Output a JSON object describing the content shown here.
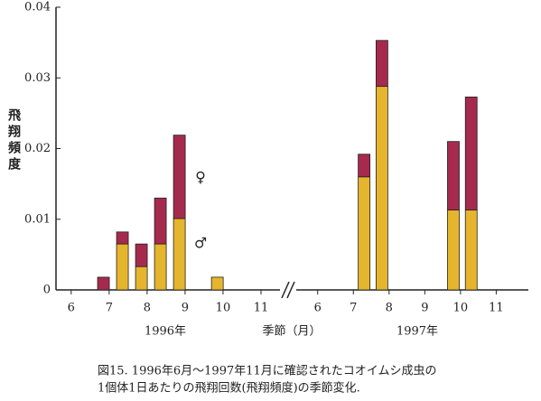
{
  "chart_data": [
    {
      "type": "bar",
      "stacked": true,
      "year": "1996年",
      "y_label": "飛翔頻度",
      "x": [
        6.85,
        7.35,
        7.85,
        8.35,
        8.85,
        9.85
      ],
      "xlim": [
        5.6,
        11.5
      ],
      "xticks": [
        6,
        7,
        8,
        9,
        10,
        11
      ],
      "ylim": [
        0,
        0.04
      ],
      "yticks": [
        0,
        0.01,
        0.02,
        0.03,
        0.04
      ],
      "series": [
        {
          "name": "♂",
          "color": "#e6b52e",
          "values": [
            0,
            0.0065,
            0.0033,
            0.0065,
            0.0101,
            0.0018
          ]
        },
        {
          "name": "♀",
          "color": "#a52a4e",
          "values": [
            0.0018,
            0.0017,
            0.0032,
            0.0065,
            0.0118,
            0
          ]
        }
      ]
    },
    {
      "type": "bar",
      "stacked": true,
      "year": "1997年",
      "x_label": "季節（月）",
      "x": [
        7.3,
        7.8,
        9.8,
        10.3
      ],
      "xlim": [
        5.4,
        11.9
      ],
      "xticks": [
        6,
        7,
        8,
        9,
        10,
        11
      ],
      "series": [
        {
          "color": "#e6b52e",
          "values": [
            0.016,
            0.0288,
            0.0113,
            0.0113
          ]
        },
        {
          "color": "#a52a4e",
          "values": [
            0.0032,
            0.0065,
            0.0097,
            0.016
          ]
        }
      ]
    }
  ],
  "caption": [
    "図15.  1996年6月～1997年11月に確認されたコオイムシ成虫の",
    "1個体1日あたりの飛翔回数(飛翔頻度)の季節変化."
  ]
}
